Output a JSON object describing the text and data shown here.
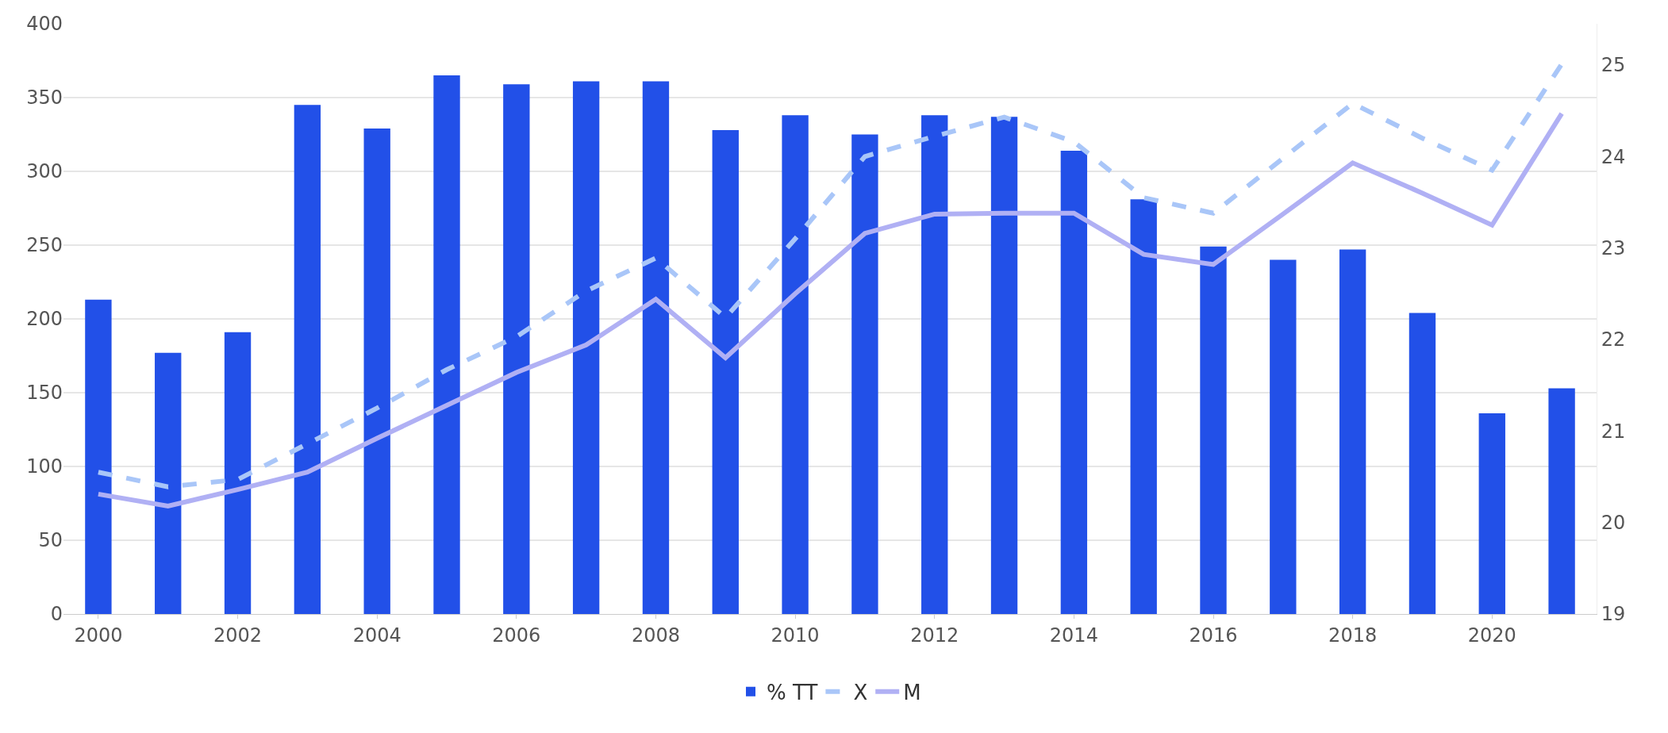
{
  "chart_data": {
    "type": "bar",
    "x": [
      2000,
      2001,
      2002,
      2003,
      2004,
      2005,
      2006,
      2007,
      2008,
      2009,
      2010,
      2011,
      2012,
      2013,
      2014,
      2015,
      2016,
      2017,
      2018,
      2019,
      2020,
      2021
    ],
    "series": [
      {
        "name": "% TT",
        "color": "#2250e8",
        "values": [
          213,
          177,
          191,
          345,
          329,
          365,
          359,
          361,
          361,
          328,
          338,
          325,
          338,
          337,
          314,
          281,
          249,
          240,
          247,
          204,
          136,
          153
        ]
      },
      {
        "name": "X",
        "type": "line",
        "axis": "y2",
        "line_style": "dashed",
        "color": "#a9c6f8",
        "values": [
          20.55,
          20.39,
          20.47,
          20.86,
          21.25,
          21.67,
          22.03,
          22.53,
          22.89,
          22.24,
          23.1,
          24.0,
          24.22,
          24.43,
          24.16,
          23.55,
          23.38,
          23.98,
          24.58,
          24.2,
          23.85,
          25.01
        ]
      },
      {
        "name": "M",
        "type": "line",
        "axis": "y2",
        "line_style": "solid",
        "color": "#b0b0f4",
        "values": [
          20.31,
          20.18,
          20.36,
          20.55,
          20.92,
          21.28,
          21.64,
          21.94,
          22.44,
          21.8,
          22.5,
          23.16,
          23.37,
          23.38,
          23.38,
          22.93,
          22.82,
          23.37,
          23.93,
          23.6,
          23.25,
          24.47
        ]
      }
    ],
    "xlim": [
      1999.5,
      2021.5
    ],
    "xticks": [
      2000,
      2002,
      2004,
      2006,
      2008,
      2010,
      2012,
      2014,
      2016,
      2018,
      2020
    ],
    "ylim": [
      0,
      400
    ],
    "yticks": [
      0,
      50,
      100,
      150,
      200,
      250,
      300,
      350,
      400
    ],
    "y2lim": [
      19,
      25.45
    ],
    "y2ticks": [
      19,
      20,
      21,
      22,
      23,
      24,
      25
    ],
    "grid": "y",
    "legend": "bottom",
    "marker": "none"
  }
}
